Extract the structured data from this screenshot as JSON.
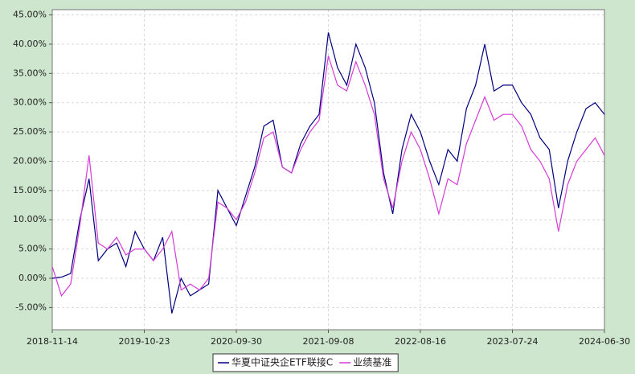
{
  "chart_data": {
    "type": "line",
    "categories": [
      "2018-11-14",
      null,
      null,
      null,
      null,
      null,
      null,
      null,
      null,
      null,
      "2019-10-23",
      null,
      null,
      null,
      null,
      null,
      null,
      null,
      null,
      null,
      "2020-09-30",
      null,
      null,
      null,
      null,
      null,
      null,
      null,
      null,
      null,
      "2021-09-08",
      null,
      null,
      null,
      null,
      null,
      null,
      null,
      null,
      null,
      "2022-08-16",
      null,
      null,
      null,
      null,
      null,
      null,
      null,
      null,
      null,
      "2023-07-24",
      null,
      null,
      null,
      null,
      null,
      null,
      null,
      null,
      null,
      "2024-06-30"
    ],
    "series": [
      {
        "name": "华夏中证央企ETF联接C",
        "color": "#000080",
        "values": [
          0,
          0.2,
          0.8,
          10,
          17,
          3,
          5,
          6,
          2,
          8,
          5,
          3,
          7,
          -6,
          0,
          -3,
          -2,
          -1,
          15,
          12,
          9,
          14,
          19,
          26,
          27,
          19,
          18,
          23,
          26,
          28,
          42,
          36,
          33,
          40,
          36,
          30,
          18,
          11,
          22,
          28,
          25,
          20,
          16,
          22,
          20,
          29,
          33,
          40,
          32,
          33,
          33,
          30,
          28,
          24,
          22,
          12,
          20,
          25,
          29,
          30,
          28
        ]
      },
      {
        "name": "业绩基准",
        "color": "#d63cd6",
        "values": [
          2,
          -3,
          -1,
          9,
          21,
          6,
          5,
          7,
          4,
          5,
          5,
          3,
          5,
          8,
          -2,
          -1,
          -2,
          0,
          13,
          12,
          10,
          13,
          18,
          24,
          25,
          19,
          18,
          22,
          25,
          27,
          38,
          33,
          32,
          37,
          33,
          28,
          17,
          12,
          20,
          25,
          22,
          17,
          11,
          17,
          16,
          23,
          27,
          31,
          27,
          28,
          28,
          26,
          22,
          20,
          17,
          8,
          16,
          20,
          22,
          24,
          21
        ]
      }
    ],
    "ylim": [
      -8.8,
      45.9
    ],
    "yticks": [
      {
        "value": 45,
        "label": "45.00%"
      },
      {
        "value": 40,
        "label": "40.00%"
      },
      {
        "value": 35,
        "label": "35.00%"
      },
      {
        "value": 30,
        "label": "30.00%"
      },
      {
        "value": 25,
        "label": "25.00%"
      },
      {
        "value": 20,
        "label": "20.00%"
      },
      {
        "value": 15,
        "label": "15.00%"
      },
      {
        "value": 10,
        "label": "10.00%"
      },
      {
        "value": 5,
        "label": "5.00%"
      },
      {
        "value": 0,
        "label": "0.00%"
      },
      {
        "value": -5,
        "label": "-5.00%"
      }
    ],
    "grid": true,
    "legend": "bottom"
  }
}
